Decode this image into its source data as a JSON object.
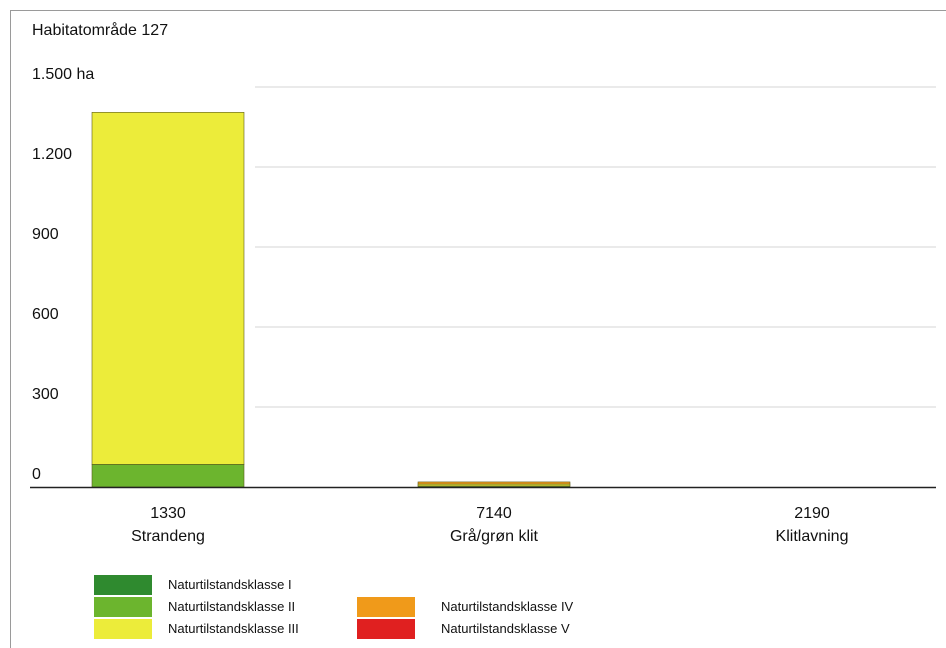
{
  "chart_data": {
    "type": "bar",
    "stacked": true,
    "title": "Habitatområde 127",
    "y_unit_label": "ha",
    "ylim": [
      0,
      1500
    ],
    "y_ticks": [
      {
        "value": 0,
        "label": "0"
      },
      {
        "value": 300,
        "label": "300"
      },
      {
        "value": 600,
        "label": "600"
      },
      {
        "value": 900,
        "label": "900"
      },
      {
        "value": 1200,
        "label": "1.200"
      },
      {
        "value": 1500,
        "label": "1.500 ha"
      }
    ],
    "grid": true,
    "categories": [
      {
        "code": "1330",
        "name": "Strandeng"
      },
      {
        "code": "7140",
        "name": "Grå/grøn klit"
      },
      {
        "code": "2190",
        "name": "Klitlavning"
      }
    ],
    "series": [
      {
        "name": "Naturtilstandsklasse I",
        "color": "#2f8a2f",
        "values": [
          0,
          0,
          0
        ]
      },
      {
        "name": "Naturtilstandsklasse II",
        "color": "#6cb52e",
        "values": [
          85,
          4,
          0
        ]
      },
      {
        "name": "Naturtilstandsklasse III",
        "color": "#ecec3a",
        "values": [
          1320,
          7,
          0
        ]
      },
      {
        "name": "Naturtilstandsklasse IV",
        "color": "#f09a1a",
        "values": [
          0,
          8,
          0
        ]
      },
      {
        "name": "Naturtilstandsklasse V",
        "color": "#e02020",
        "values": [
          0,
          0,
          0
        ]
      }
    ]
  }
}
